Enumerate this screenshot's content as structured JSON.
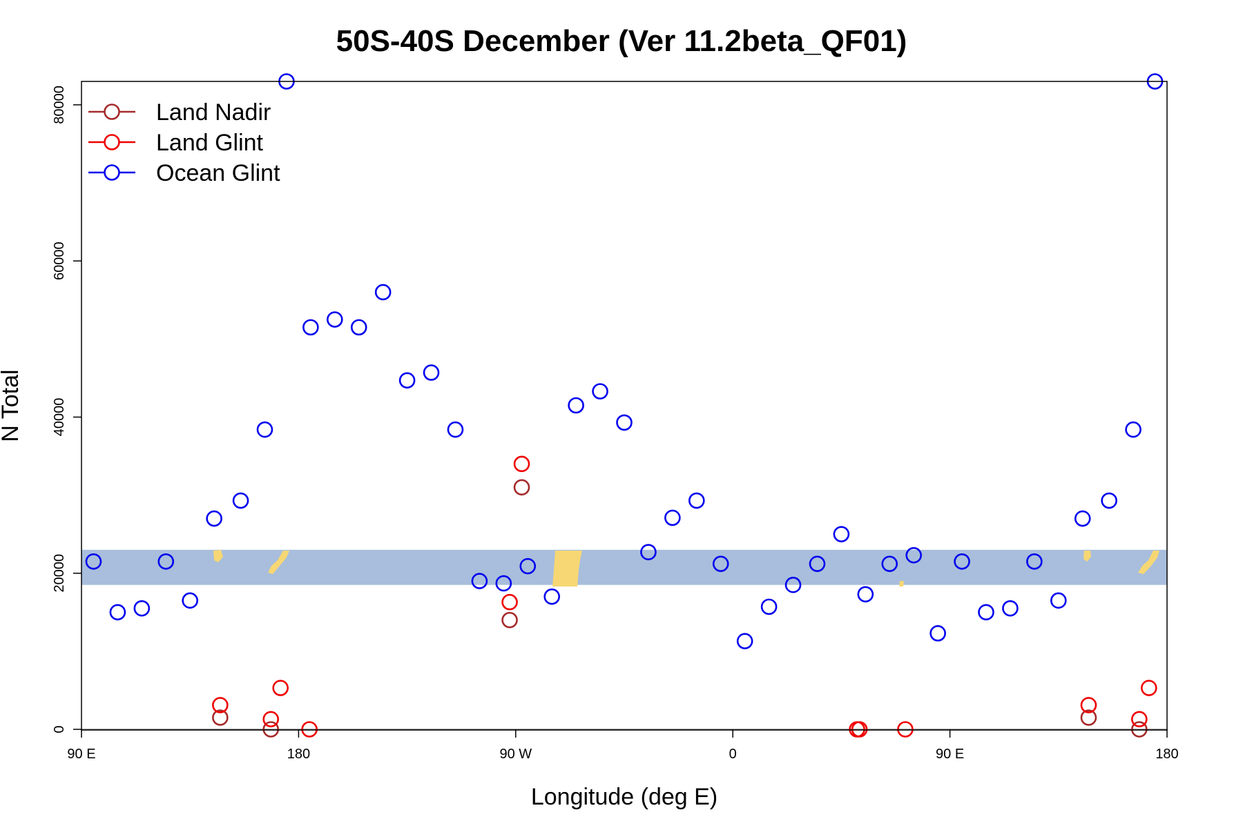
{
  "chart_data": {
    "type": "scatter",
    "title": "50S-40S December (Ver 11.2beta_QF01)",
    "xlabel": "Longitude (deg E)",
    "ylabel": "N Total",
    "xlim": [
      90,
      540
    ],
    "ylim": [
      0,
      83000
    ],
    "xticks": [
      {
        "value": 90,
        "label": "90 E"
      },
      {
        "value": 180,
        "label": "180"
      },
      {
        "value": 270,
        "label": "90 W"
      },
      {
        "value": 360,
        "label": "0"
      },
      {
        "value": 450,
        "label": "90 E"
      },
      {
        "value": 540,
        "label": "180"
      }
    ],
    "yticks": [
      {
        "value": 0,
        "label": "0"
      },
      {
        "value": 20000,
        "label": "20000"
      },
      {
        "value": 40000,
        "label": "40000"
      },
      {
        "value": 60000,
        "label": "60000"
      },
      {
        "value": 80000,
        "label": "80000"
      }
    ],
    "latitude_band": {
      "ymin": 18500,
      "ymax": 23000,
      "ocean_color": "#a8bedc",
      "land_color": "#f7d774"
    },
    "legend": {
      "position": "top-left"
    },
    "series": [
      {
        "name": "Land Nadir",
        "color": "#a52a2a",
        "points": [
          [
            147.5,
            1500
          ],
          [
            168.5,
            0
          ],
          [
            267.5,
            14000
          ],
          [
            272.5,
            31000
          ],
          [
            507.5,
            1500
          ],
          [
            528.5,
            0
          ]
        ]
      },
      {
        "name": "Land Glint",
        "color": "#ee0000",
        "points": [
          [
            147.5,
            3100
          ],
          [
            168.5,
            1300
          ],
          [
            172.5,
            5300
          ],
          [
            184.5,
            0
          ],
          [
            267.5,
            16300
          ],
          [
            272.5,
            34000
          ],
          [
            411.5,
            0
          ],
          [
            412.5,
            0
          ],
          [
            431.5,
            0
          ],
          [
            507.5,
            3100
          ],
          [
            528.5,
            1300
          ],
          [
            532.5,
            5300
          ]
        ]
      },
      {
        "name": "Ocean Glint",
        "color": "#0000ee",
        "points": [
          [
            95,
            21500
          ],
          [
            105,
            15000
          ],
          [
            115,
            15500
          ],
          [
            125,
            21500
          ],
          [
            135,
            16500
          ],
          [
            145,
            27000
          ],
          [
            156,
            29300
          ],
          [
            166,
            38400
          ],
          [
            175,
            83000
          ],
          [
            185,
            51500
          ],
          [
            195,
            52500
          ],
          [
            205,
            51500
          ],
          [
            215,
            56000
          ],
          [
            225,
            44700
          ],
          [
            235,
            45700
          ],
          [
            245,
            38400
          ],
          [
            255,
            19000
          ],
          [
            265,
            18700
          ],
          [
            275,
            20900
          ],
          [
            285,
            17000
          ],
          [
            295,
            41500
          ],
          [
            305,
            43300
          ],
          [
            315,
            39300
          ],
          [
            325,
            22700
          ],
          [
            335,
            27100
          ],
          [
            345,
            29300
          ],
          [
            355,
            21200
          ],
          [
            365,
            11300
          ],
          [
            375,
            15700
          ],
          [
            385,
            18500
          ],
          [
            395,
            21200
          ],
          [
            405,
            25000
          ],
          [
            415,
            17300
          ],
          [
            425,
            21200
          ],
          [
            435,
            22300
          ],
          [
            445,
            12300
          ],
          [
            455,
            21500
          ],
          [
            465,
            15000
          ],
          [
            475,
            15500
          ],
          [
            485,
            21500
          ],
          [
            495,
            16500
          ],
          [
            505,
            27000
          ],
          [
            516,
            29300
          ],
          [
            526,
            38400
          ],
          [
            535,
            83000
          ]
        ]
      }
    ]
  }
}
